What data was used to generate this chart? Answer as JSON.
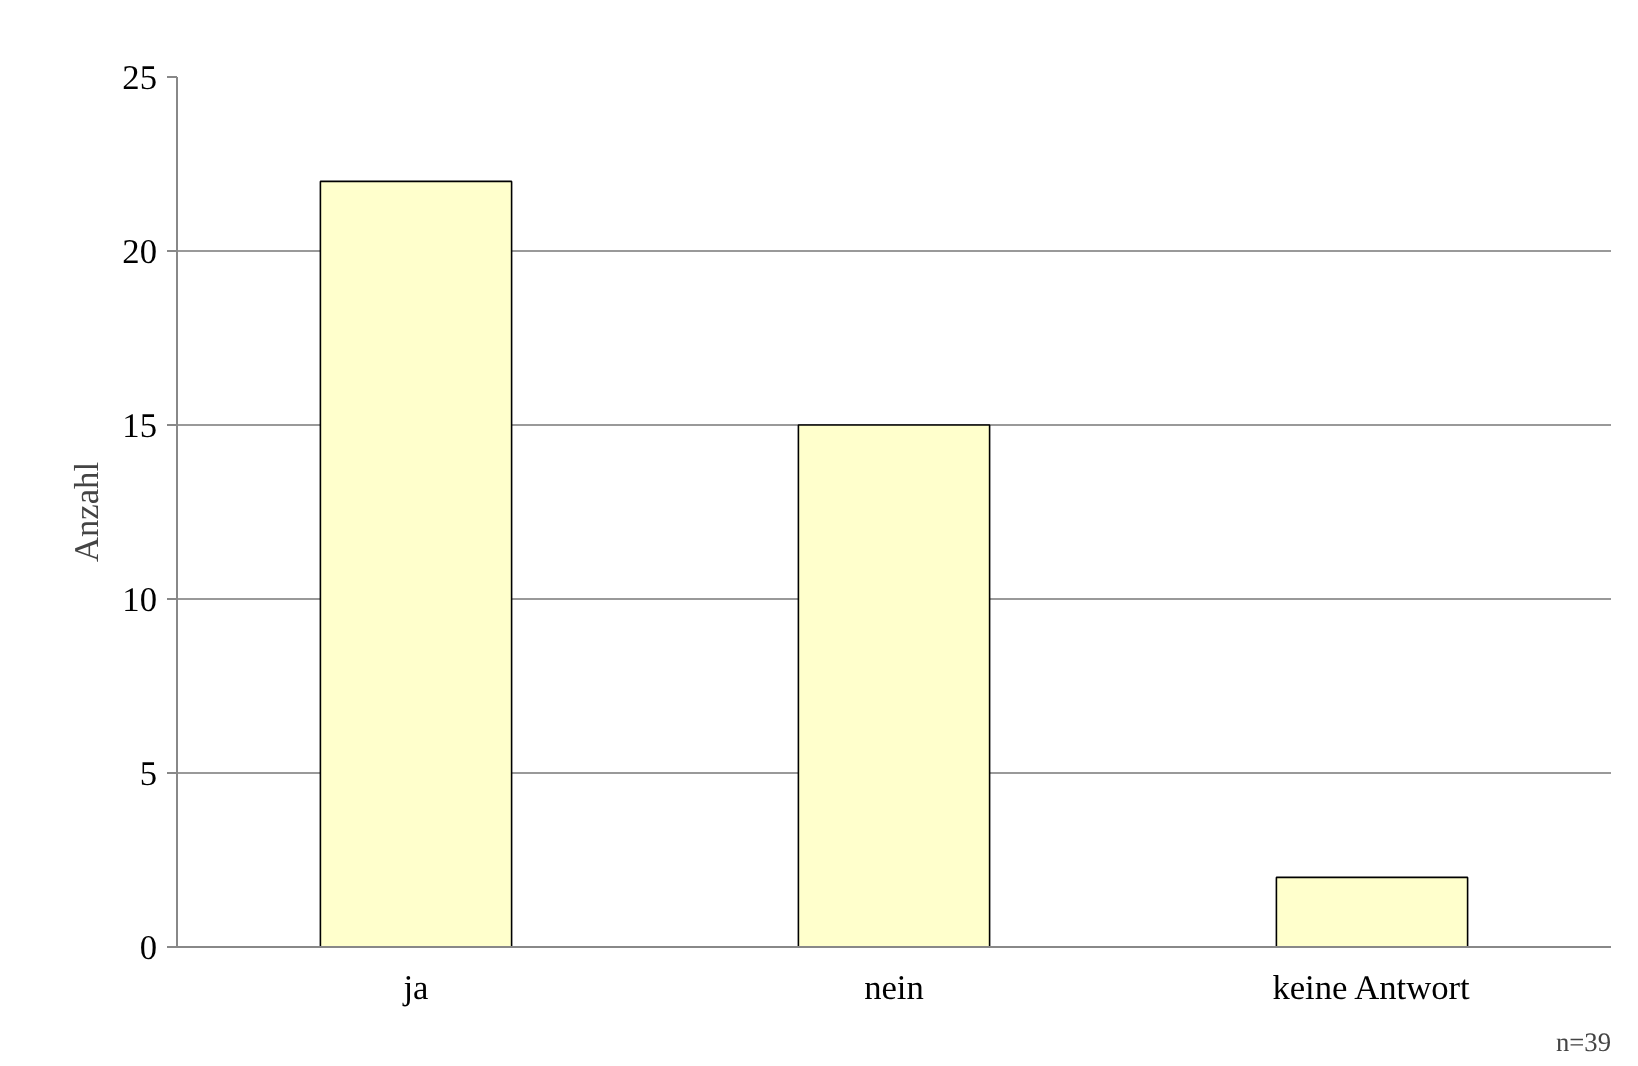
{
  "chart_data": {
    "type": "bar",
    "ylabel": "Anzahl",
    "categories": [
      "ja",
      "nein",
      "keine Antwort"
    ],
    "values": [
      22,
      15,
      2
    ],
    "color": "#ffffcc",
    "ylim": [
      0,
      25
    ],
    "yticks": [
      0,
      5,
      10,
      15,
      20,
      25
    ],
    "grid": "y",
    "annotations": [
      "n=39"
    ]
  }
}
